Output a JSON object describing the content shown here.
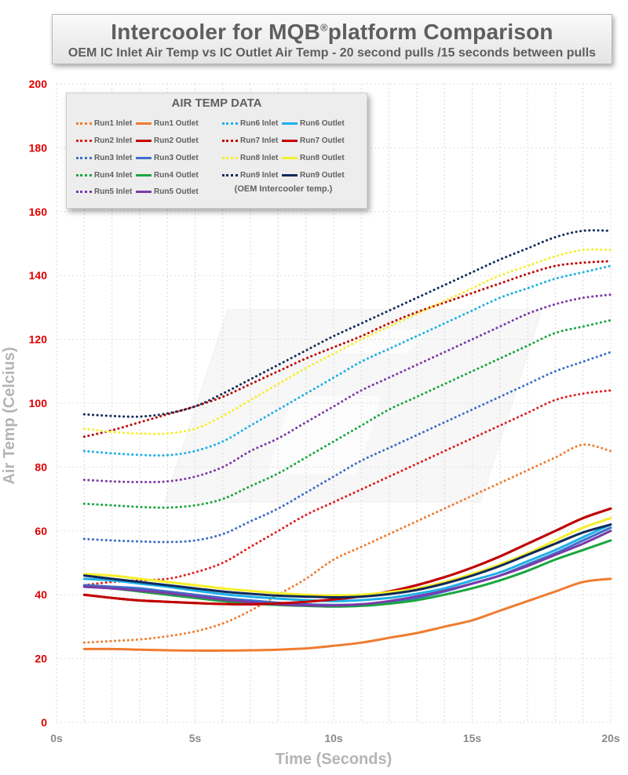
{
  "header": {
    "title_main": "Intercooler for MQB",
    "title_reg": "®",
    "title_tail": "platform Comparison",
    "subtitle": "OEM IC Inlet Air Temp vs IC Outlet Air Temp - 20 second pulls /15 seconds between pulls"
  },
  "legend": {
    "title": "AIR TEMP DATA",
    "note": "(OEM Intercooler temp.)"
  },
  "chart_data": {
    "type": "line",
    "title": "Intercooler for MQB® platform Comparison",
    "subtitle": "OEM IC Inlet Air Temp vs IC Outlet Air Temp - 20 second pulls /15 seconds between pulls",
    "xlabel": "Time (Seconds)",
    "ylabel": "Air Temp (Celcius)",
    "xlim": [
      0,
      20
    ],
    "ylim": [
      0,
      200
    ],
    "x_ticks": [
      {
        "v": 0,
        "label": "0s"
      },
      {
        "v": 5,
        "label": "5s"
      },
      {
        "v": 10,
        "label": "10s"
      },
      {
        "v": 15,
        "label": "15s"
      },
      {
        "v": 20,
        "label": "20s"
      }
    ],
    "y_ticks": [
      0,
      20,
      40,
      60,
      80,
      100,
      120,
      140,
      160,
      180,
      200
    ],
    "x": [
      1,
      2,
      3,
      4,
      5,
      6,
      7,
      8,
      9,
      10,
      11,
      12,
      13,
      14,
      15,
      16,
      17,
      18,
      19,
      20
    ],
    "series": [
      {
        "name": "Run1 Inlet",
        "color": "#ef7c30",
        "dashed": true,
        "values": [
          25,
          25.5,
          26,
          27,
          28.5,
          31,
          35,
          40,
          45,
          51,
          55,
          59,
          63,
          67,
          71,
          75,
          79,
          83,
          87,
          85
        ]
      },
      {
        "name": "Run1 Outlet",
        "color": "#ef7c30",
        "dashed": false,
        "values": [
          23,
          23,
          22.8,
          22.6,
          22.5,
          22.5,
          22.6,
          22.8,
          23.2,
          24,
          25,
          26.5,
          28,
          30,
          32,
          35,
          38,
          41,
          44,
          45
        ]
      },
      {
        "name": "Run2 Inlet",
        "color": "#e01e1e",
        "dashed": true,
        "values": [
          43,
          44,
          44.5,
          45,
          47,
          50,
          55,
          60,
          65,
          69,
          73,
          77,
          81,
          85,
          89,
          93,
          97,
          101,
          103,
          104
        ]
      },
      {
        "name": "Run2 Outlet",
        "color": "#c40000",
        "dashed": false,
        "values": [
          40,
          39,
          38.2,
          37.8,
          37.4,
          37.1,
          37,
          37.3,
          37.8,
          38.5,
          39.5,
          41,
          43,
          45.5,
          48.5,
          52,
          56,
          60,
          64,
          67
        ]
      },
      {
        "name": "Run3 Inlet",
        "color": "#3e6ec8",
        "dashed": true,
        "values": [
          57.5,
          57,
          56.7,
          56.5,
          57,
          59,
          63,
          67,
          72,
          77,
          82,
          86,
          90,
          94,
          98,
          102,
          106,
          110,
          113,
          116
        ]
      },
      {
        "name": "Run3 Outlet",
        "color": "#3e6ec8",
        "dashed": false,
        "values": [
          43,
          42.5,
          42,
          41,
          40,
          39,
          38.2,
          37.5,
          37,
          36.8,
          37,
          37.8,
          39,
          41,
          43.5,
          46,
          49.5,
          53,
          57,
          61
        ]
      },
      {
        "name": "Run4 Inlet",
        "color": "#19a63e",
        "dashed": true,
        "values": [
          68.5,
          68,
          67.5,
          67.3,
          68,
          70,
          74,
          78,
          83,
          88,
          93,
          98,
          102,
          106,
          110,
          114,
          118,
          122,
          124,
          126
        ]
      },
      {
        "name": "Run4 Outlet",
        "color": "#19a63e",
        "dashed": false,
        "values": [
          42.5,
          42,
          41,
          40,
          39,
          38,
          37.3,
          36.8,
          36.5,
          36.3,
          36.5,
          37.2,
          38.3,
          40,
          42,
          44.5,
          47.5,
          51,
          54,
          57
        ]
      },
      {
        "name": "Run5 Inlet",
        "color": "#7b3aa8",
        "dashed": true,
        "values": [
          76,
          75.5,
          75.3,
          75.5,
          77,
          80,
          85,
          89,
          94,
          99,
          104,
          108,
          112,
          116,
          120,
          124,
          128,
          131,
          133,
          134
        ]
      },
      {
        "name": "Run5 Outlet",
        "color": "#7b3aa8",
        "dashed": false,
        "values": [
          42.5,
          42,
          41.3,
          40.5,
          39.5,
          38.5,
          37.7,
          37,
          36.7,
          36.6,
          37,
          38,
          39.5,
          41.3,
          43.5,
          46,
          49,
          52.5,
          56,
          60
        ]
      },
      {
        "name": "Run6 Inlet",
        "color": "#1eb0e8",
        "dashed": true,
        "values": [
          85,
          84.3,
          83.8,
          83.7,
          85,
          88,
          93,
          98,
          103,
          108,
          113,
          117,
          121,
          125,
          129,
          133,
          136,
          139,
          141,
          143
        ]
      },
      {
        "name": "Run6 Outlet",
        "color": "#1eb0e8",
        "dashed": false,
        "values": [
          45,
          44.5,
          43.5,
          42.5,
          41.3,
          40.2,
          39.4,
          38.8,
          38.3,
          38,
          38.3,
          39,
          40.3,
          42,
          44.5,
          47,
          50.5,
          54,
          58,
          62
        ]
      },
      {
        "name": "Run7 Inlet",
        "color": "#c00000",
        "dashed": true,
        "values": [
          89.5,
          91.5,
          94,
          96.5,
          99,
          102,
          106,
          110,
          114,
          117.5,
          121,
          125,
          128.5,
          131.5,
          134.5,
          137.5,
          140.5,
          143,
          144,
          144.5
        ]
      },
      {
        "name": "Run7 Outlet",
        "color": "#c00000",
        "dashed": false,
        "values": [
          40,
          39,
          38.2,
          37.8,
          37.4,
          37.1,
          37,
          37.3,
          37.8,
          38.5,
          39.5,
          41,
          43,
          45.5,
          48.5,
          52,
          56,
          60,
          64,
          67
        ]
      },
      {
        "name": "Run8 Inlet",
        "color": "#f5ef2a",
        "dashed": true,
        "values": [
          92,
          91,
          90.5,
          90.5,
          92,
          96,
          101,
          106,
          111,
          115.5,
          120,
          124,
          128,
          132,
          136,
          140,
          143,
          146,
          148,
          148
        ]
      },
      {
        "name": "Run8 Outlet",
        "color": "#f5ef2a",
        "dashed": false,
        "values": [
          46.5,
          46,
          45,
          44,
          43,
          42,
          41.2,
          40.5,
          40,
          39.8,
          40,
          40.8,
          42,
          44,
          46.5,
          49.5,
          53,
          57,
          61,
          64
        ]
      },
      {
        "name": "Run9 Inlet",
        "color": "#0f2a5a",
        "dashed": true,
        "values": [
          96.5,
          96,
          95.8,
          96.8,
          99,
          103,
          107.5,
          112,
          116.5,
          121,
          125,
          129,
          133,
          137,
          141,
          145,
          148.5,
          152,
          154,
          154
        ]
      },
      {
        "name": "Run9 Outlet",
        "color": "#0f2a5a",
        "dashed": false,
        "values": [
          46,
          45,
          44,
          43,
          42,
          41,
          40.3,
          39.7,
          39.4,
          39.2,
          39.4,
          40.2,
          41.5,
          43.5,
          46,
          49,
          52.5,
          56,
          59.5,
          62
        ]
      }
    ]
  }
}
